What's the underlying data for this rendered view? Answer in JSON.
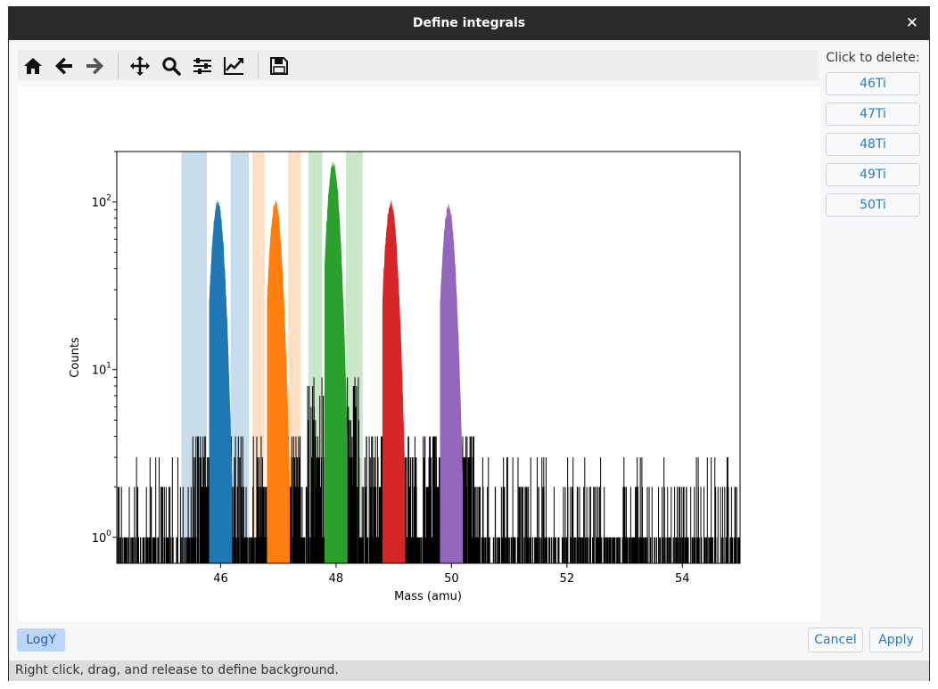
{
  "window": {
    "title": "Define integrals"
  },
  "toolbar": {
    "icons": [
      "home-icon",
      "back-arrow-icon",
      "forward-arrow-icon",
      "pan-icon",
      "zoom-icon",
      "subplots-config-icon",
      "edit-axes-icon",
      "save-icon"
    ]
  },
  "side_panel": {
    "label": "Click to delete:",
    "items": [
      "46Ti",
      "47Ti",
      "48Ti",
      "49Ti",
      "50Ti"
    ]
  },
  "buttons": {
    "logy": "LogY",
    "cancel": "Cancel",
    "apply": "Apply"
  },
  "status": "Right click, drag, and release to define background.",
  "colors": {
    "accent": "#2a7ac0",
    "blue": "#1f77b4",
    "orange": "#ff7f0e",
    "green": "#2ca02c",
    "red": "#d62728",
    "purple": "#9467bd"
  },
  "chart_data": {
    "type": "bar",
    "xlabel": "Mass (amu)",
    "ylabel": "Counts",
    "xlim": [
      44.2,
      55.0
    ],
    "ylim": [
      0.7,
      200
    ],
    "yscale": "log",
    "xticks": [
      "46",
      "48",
      "50",
      "52",
      "54"
    ],
    "yticks": [
      "10^0",
      "10^1",
      "10^2"
    ],
    "peaks": [
      {
        "name": "46Ti",
        "center": 45.95,
        "height": 100,
        "width": 0.09,
        "color": "#1f77b4"
      },
      {
        "name": "47Ti",
        "center": 46.95,
        "height": 100,
        "width": 0.09,
        "color": "#ff7f0e"
      },
      {
        "name": "48Ti",
        "center": 47.95,
        "height": 170,
        "width": 0.09,
        "color": "#2ca02c"
      },
      {
        "name": "49Ti",
        "center": 48.95,
        "height": 100,
        "width": 0.09,
        "color": "#d62728"
      },
      {
        "name": "50Ti",
        "center": 49.95,
        "height": 95,
        "width": 0.09,
        "color": "#9467bd"
      }
    ],
    "integral_ranges": [
      {
        "name": "46Ti",
        "range": [
          45.8,
          46.2
        ],
        "color": "#1f77b4"
      },
      {
        "name": "47Ti",
        "range": [
          46.8,
          47.2
        ],
        "color": "#ff7f0e"
      },
      {
        "name": "48Ti",
        "range": [
          47.8,
          48.2
        ],
        "color": "#2ca02c"
      },
      {
        "name": "49Ti",
        "range": [
          48.8,
          49.2
        ],
        "color": "#d62728"
      },
      {
        "name": "50Ti",
        "range": [
          49.8,
          50.2
        ],
        "color": "#9467bd"
      }
    ],
    "background_ranges": [
      {
        "range": [
          45.32,
          45.76
        ],
        "color": "#1f77b4"
      },
      {
        "range": [
          46.17,
          46.49
        ],
        "color": "#1f77b4"
      },
      {
        "range": [
          46.55,
          46.76
        ],
        "color": "#ff7f0e"
      },
      {
        "range": [
          47.17,
          47.39
        ],
        "color": "#ff7f0e"
      },
      {
        "range": [
          47.52,
          47.76
        ],
        "color": "#2ca02c"
      },
      {
        "range": [
          48.17,
          48.46
        ],
        "color": "#2ca02c"
      }
    ]
  }
}
